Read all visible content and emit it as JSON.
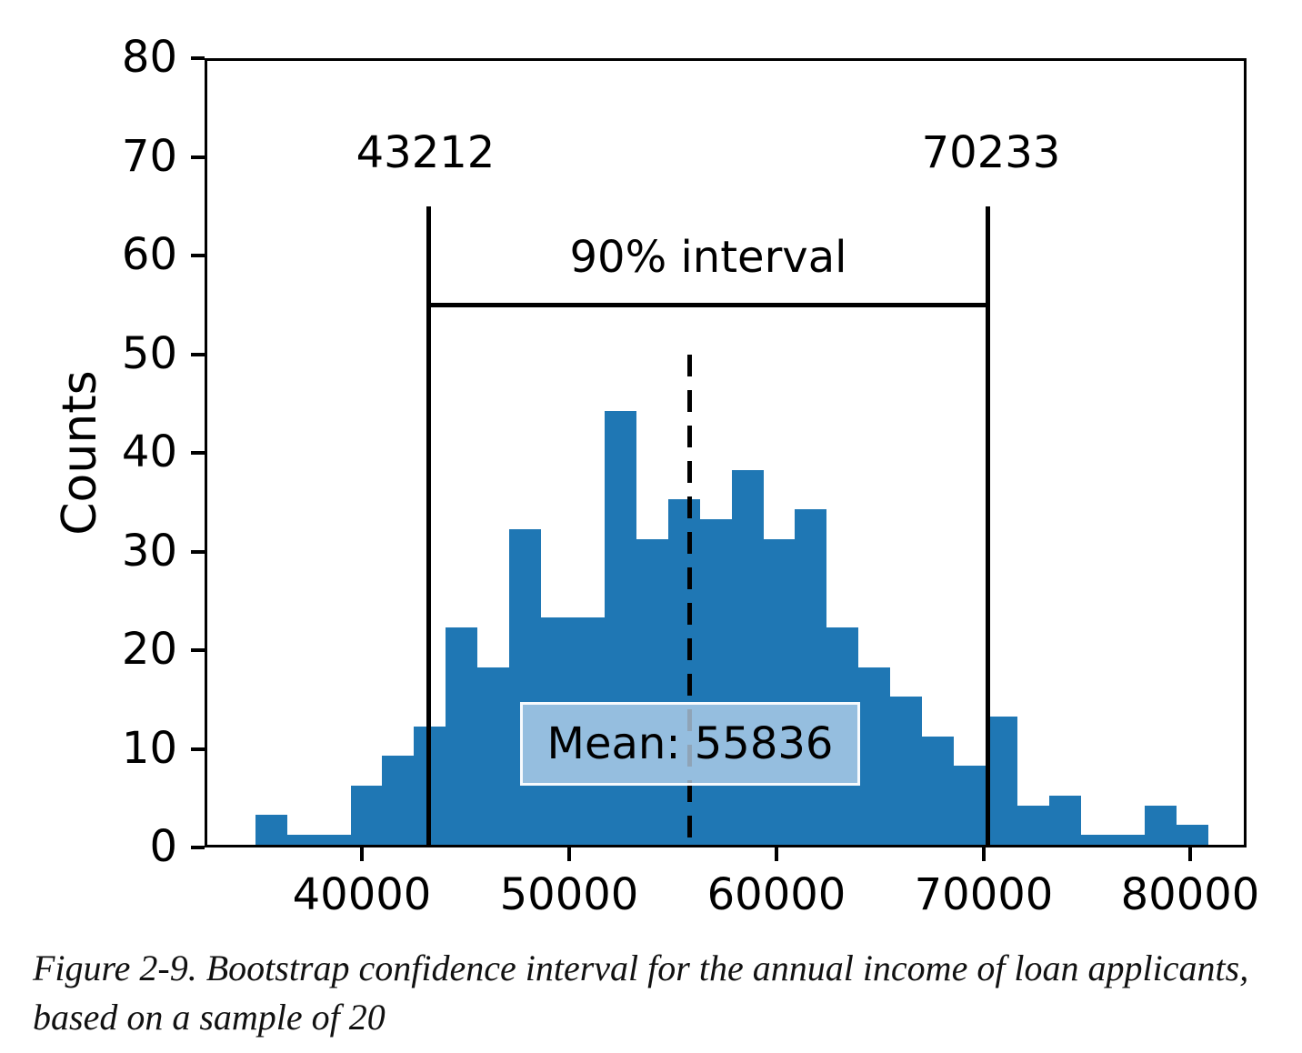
{
  "figure": {
    "caption_line1": "Figure 2-9. Bootstrap confidence interval for the annual income of loan applicants,",
    "caption_line2": "based on a sample of 20"
  },
  "chart_data": {
    "type": "bar",
    "subtype": "histogram",
    "title": "",
    "xlabel": "",
    "ylabel": "Counts",
    "xlim": [
      32400,
      82700
    ],
    "ylim": [
      0,
      80
    ],
    "x_ticks": [
      "40000",
      "50000",
      "60000",
      "70000",
      "80000"
    ],
    "x_tick_values": [
      40000,
      50000,
      60000,
      70000,
      80000
    ],
    "y_ticks": [
      "0",
      "10",
      "20",
      "30",
      "40",
      "50",
      "60",
      "70",
      "80"
    ],
    "y_tick_values": [
      0,
      10,
      20,
      30,
      40,
      50,
      60,
      70,
      80
    ],
    "grid": false,
    "legend": null,
    "bar_color": "#1f77b4",
    "bin_start": 34846,
    "bin_width": 1533,
    "counts": [
      3,
      1,
      1,
      6,
      9,
      12,
      22,
      18,
      32,
      23,
      23,
      44,
      31,
      35,
      33,
      38,
      31,
      34,
      22,
      18,
      15,
      11,
      8,
      13,
      4,
      5,
      1,
      1,
      4,
      2
    ],
    "annotations": {
      "ci_lower_value": 43212,
      "ci_lower_label": "43212",
      "ci_upper_value": 70233,
      "ci_upper_label": "70233",
      "ci_line_top_count": 65,
      "interval_label": "90% interval",
      "interval_bracket_count": 55,
      "mean_value": 55836,
      "mean_label": "Mean: 55836",
      "mean_dash_top_count": 50
    }
  }
}
